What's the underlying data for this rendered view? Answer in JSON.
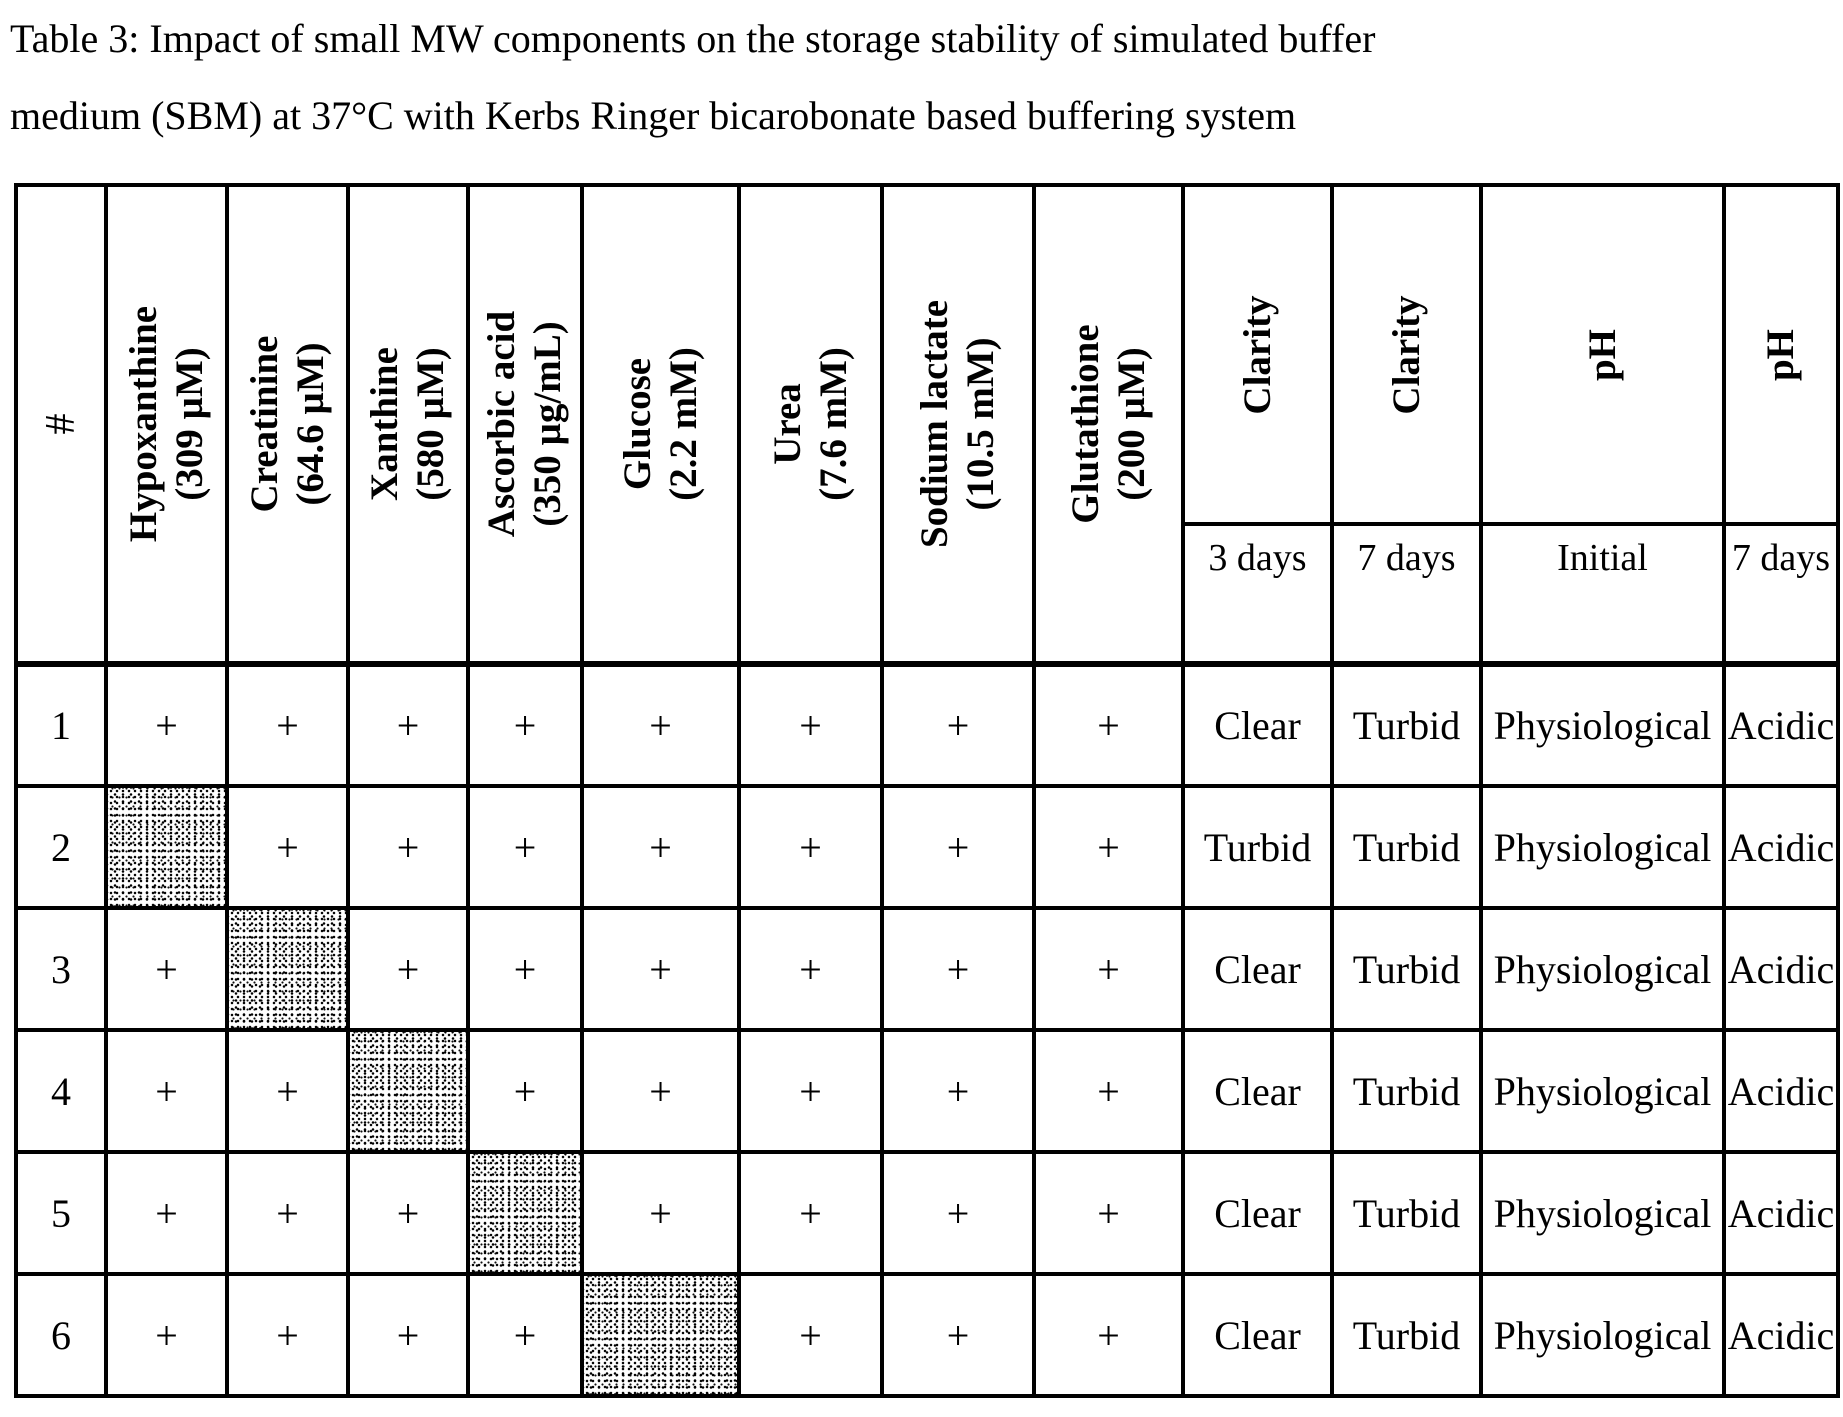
{
  "title": {
    "line1": "Table 3: Impact of small MW components on the storage stability of simulated buffer",
    "line2": "medium (SBM) at 37°C with Kerbs Ringer bicarobonate based buffering system"
  },
  "table": {
    "row_number_header": "#",
    "component_columns": [
      {
        "name": "Hypoxanthine",
        "concentration": "(309 µM)"
      },
      {
        "name": "Creatinine",
        "concentration": "(64.6 µM)"
      },
      {
        "name": "Xanthine",
        "concentration": "(580 µM)"
      },
      {
        "name": "Ascorbic acid",
        "concentration": "(350 µg/mL)"
      },
      {
        "name": "Glucose",
        "concentration": "(2.2 mM)"
      },
      {
        "name": "Urea",
        "concentration": "(7.6 mM)"
      },
      {
        "name": "Sodium lactate",
        "concentration": "(10.5 mM)"
      },
      {
        "name": "Glutathione",
        "concentration": "(200 µM)"
      }
    ],
    "result_columns": [
      {
        "group": "Clarity",
        "timepoint": "3 days"
      },
      {
        "group": "Clarity",
        "timepoint": "7 days"
      },
      {
        "group": "pH",
        "timepoint": "Initial"
      },
      {
        "group": "pH",
        "timepoint": "7 days"
      }
    ],
    "present_symbol": "+",
    "rows": [
      {
        "num": "1",
        "components": [
          "+",
          "+",
          "+",
          "+",
          "+",
          "+",
          "+",
          "+"
        ],
        "results": [
          "Clear",
          "Turbid",
          "Physiological",
          "Acidic"
        ]
      },
      {
        "num": "2",
        "components": [
          null,
          "+",
          "+",
          "+",
          "+",
          "+",
          "+",
          "+"
        ],
        "results": [
          "Turbid",
          "Turbid",
          "Physiological",
          "Acidic"
        ]
      },
      {
        "num": "3",
        "components": [
          "+",
          null,
          "+",
          "+",
          "+",
          "+",
          "+",
          "+"
        ],
        "results": [
          "Clear",
          "Turbid",
          "Physiological",
          "Acidic"
        ]
      },
      {
        "num": "4",
        "components": [
          "+",
          "+",
          null,
          "+",
          "+",
          "+",
          "+",
          "+"
        ],
        "results": [
          "Clear",
          "Turbid",
          "Physiological",
          "Acidic"
        ]
      },
      {
        "num": "5",
        "components": [
          "+",
          "+",
          "+",
          null,
          "+",
          "+",
          "+",
          "+"
        ],
        "results": [
          "Clear",
          "Turbid",
          "Physiological",
          "Acidic"
        ]
      },
      {
        "num": "6",
        "components": [
          "+",
          "+",
          "+",
          "+",
          null,
          "+",
          "+",
          "+"
        ],
        "results": [
          "Clear",
          "Turbid",
          "Physiological",
          "Acidic"
        ]
      }
    ]
  }
}
